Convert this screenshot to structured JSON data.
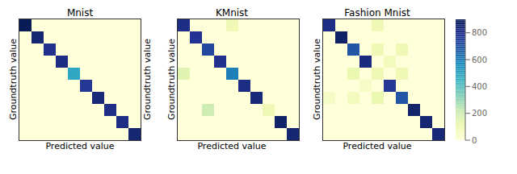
{
  "chart_data": [
    {
      "type": "heatmap",
      "title": "Mnist",
      "xlabel": "Predicted value",
      "ylabel": "Groundtruth value",
      "y2label": "Groundtruth value",
      "tick_labels": false,
      "values": [
        [
          900,
          0,
          0,
          0,
          0,
          0,
          0,
          0,
          0,
          0
        ],
        [
          0,
          850,
          0,
          0,
          0,
          0,
          0,
          0,
          0,
          0
        ],
        [
          0,
          0,
          800,
          0,
          0,
          0,
          0,
          0,
          0,
          0
        ],
        [
          0,
          0,
          0,
          820,
          0,
          0,
          0,
          0,
          0,
          0
        ],
        [
          0,
          0,
          0,
          0,
          500,
          0,
          0,
          0,
          0,
          0
        ],
        [
          0,
          0,
          0,
          0,
          0,
          780,
          0,
          0,
          0,
          0
        ],
        [
          0,
          0,
          0,
          0,
          0,
          0,
          840,
          0,
          0,
          0
        ],
        [
          0,
          0,
          0,
          0,
          0,
          0,
          0,
          810,
          0,
          0
        ],
        [
          0,
          0,
          0,
          0,
          0,
          0,
          0,
          0,
          820,
          0
        ],
        [
          0,
          0,
          0,
          0,
          0,
          0,
          0,
          0,
          0,
          850
        ]
      ]
    },
    {
      "type": "heatmap",
      "title": "KMnist",
      "xlabel": "Predicted value",
      "ylabel": "Groundtruth value",
      "tick_labels": false,
      "values": [
        [
          820,
          0,
          0,
          0,
          100,
          0,
          0,
          0,
          0,
          0
        ],
        [
          0,
          790,
          0,
          0,
          0,
          0,
          0,
          0,
          0,
          0
        ],
        [
          0,
          0,
          730,
          0,
          0,
          0,
          0,
          0,
          0,
          0
        ],
        [
          0,
          0,
          0,
          800,
          0,
          0,
          0,
          0,
          0,
          0
        ],
        [
          150,
          0,
          0,
          0,
          600,
          0,
          0,
          0,
          0,
          0
        ],
        [
          0,
          0,
          0,
          0,
          0,
          820,
          0,
          0,
          0,
          0
        ],
        [
          0,
          0,
          0,
          0,
          0,
          0,
          840,
          0,
          0,
          0
        ],
        [
          0,
          0,
          200,
          0,
          0,
          0,
          0,
          100,
          0,
          0
        ],
        [
          0,
          0,
          0,
          0,
          0,
          0,
          0,
          0,
          870,
          0
        ],
        [
          0,
          0,
          0,
          0,
          0,
          0,
          0,
          0,
          0,
          850
        ]
      ]
    },
    {
      "type": "heatmap",
      "title": "Fashion Mnist",
      "xlabel": "Predicted value",
      "ylabel": "Groundtruth value",
      "tick_labels": false,
      "values": [
        [
          820,
          0,
          0,
          0,
          100,
          0,
          0,
          0,
          0,
          0
        ],
        [
          0,
          870,
          0,
          0,
          0,
          0,
          0,
          0,
          0,
          0
        ],
        [
          0,
          0,
          700,
          0,
          100,
          0,
          100,
          0,
          0,
          0
        ],
        [
          0,
          0,
          0,
          830,
          0,
          80,
          0,
          0,
          0,
          0
        ],
        [
          0,
          0,
          120,
          0,
          100,
          0,
          100,
          0,
          0,
          0
        ],
        [
          0,
          0,
          0,
          50,
          0,
          780,
          0,
          0,
          0,
          0
        ],
        [
          60,
          0,
          80,
          0,
          120,
          0,
          700,
          0,
          0,
          0
        ],
        [
          0,
          0,
          0,
          0,
          0,
          0,
          0,
          860,
          0,
          0
        ],
        [
          0,
          0,
          0,
          0,
          0,
          0,
          0,
          0,
          850,
          0
        ],
        [
          0,
          0,
          0,
          0,
          0,
          0,
          0,
          0,
          0,
          840
        ]
      ],
      "colorbar": {
        "lim": [
          0,
          900
        ],
        "ticks": [
          0,
          200,
          400,
          600,
          800
        ]
      }
    }
  ]
}
